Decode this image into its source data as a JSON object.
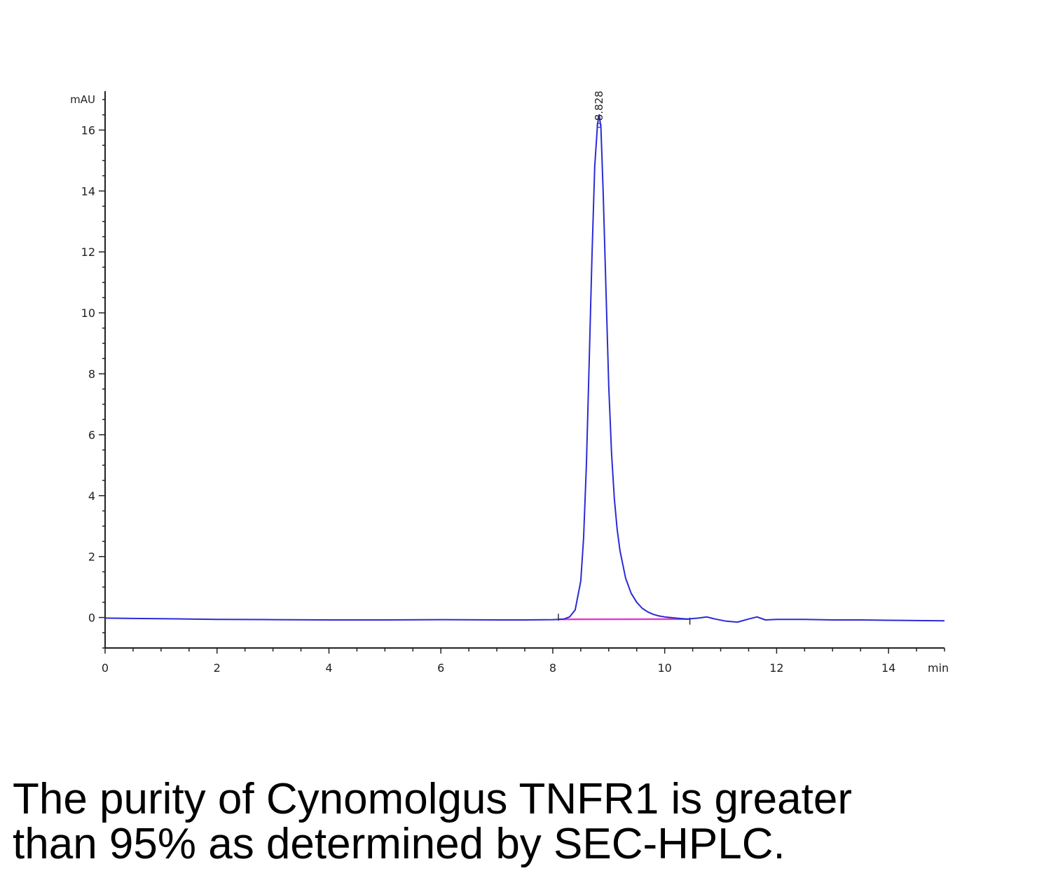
{
  "chart_data": {
    "type": "line",
    "ylabel": "mAU",
    "xlabel": "min",
    "xlim": [
      0,
      15
    ],
    "ylim": [
      -1,
      17
    ],
    "x_ticks": [
      0,
      2,
      4,
      6,
      8,
      10,
      12,
      14
    ],
    "y_ticks": [
      0,
      2,
      4,
      6,
      8,
      10,
      12,
      14,
      16
    ],
    "grid": false,
    "colors": {
      "trace": "#2b2bd6",
      "baseline": "#e040c8",
      "axis": "#222222"
    },
    "peak_label": "8.828",
    "series": [
      {
        "x": [
          0,
          0.5,
          1,
          1.5,
          2,
          3,
          4,
          5,
          6,
          7,
          7.5,
          8,
          8.1,
          8.2,
          8.3,
          8.4,
          8.5,
          8.55,
          8.6,
          8.65,
          8.7,
          8.75,
          8.8,
          8.828,
          8.86,
          8.9,
          8.95,
          9.0,
          9.05,
          9.1,
          9.15,
          9.2,
          9.3,
          9.4,
          9.5,
          9.6,
          9.7,
          9.8,
          9.9,
          10.0,
          10.2,
          10.4,
          10.6,
          10.75,
          10.9,
          11.1,
          11.3,
          11.5,
          11.65,
          11.8,
          12,
          12.5,
          13,
          13.5,
          14,
          14.5,
          15
        ],
        "y": [
          -0.02,
          -0.03,
          -0.04,
          -0.05,
          -0.06,
          -0.07,
          -0.08,
          -0.08,
          -0.07,
          -0.08,
          -0.08,
          -0.07,
          -0.06,
          -0.05,
          0.02,
          0.25,
          1.2,
          2.6,
          5.0,
          8.3,
          11.8,
          14.8,
          16.2,
          16.5,
          16.1,
          14.0,
          10.8,
          7.6,
          5.4,
          3.9,
          2.9,
          2.2,
          1.3,
          0.8,
          0.5,
          0.3,
          0.18,
          0.1,
          0.05,
          0.02,
          -0.02,
          -0.05,
          -0.02,
          0.02,
          -0.05,
          -0.12,
          -0.15,
          -0.05,
          0.02,
          -0.08,
          -0.06,
          -0.06,
          -0.08,
          -0.08,
          -0.09,
          -0.1,
          -0.11
        ]
      }
    ],
    "baseline_segment": {
      "x": [
        8.1,
        10.45
      ],
      "y": [
        -0.06,
        -0.05
      ]
    }
  },
  "caption": {
    "line1": "The purity of Cynomolgus TNFR1 is greater",
    "line2": "than 95% as determined by SEC-HPLC."
  }
}
